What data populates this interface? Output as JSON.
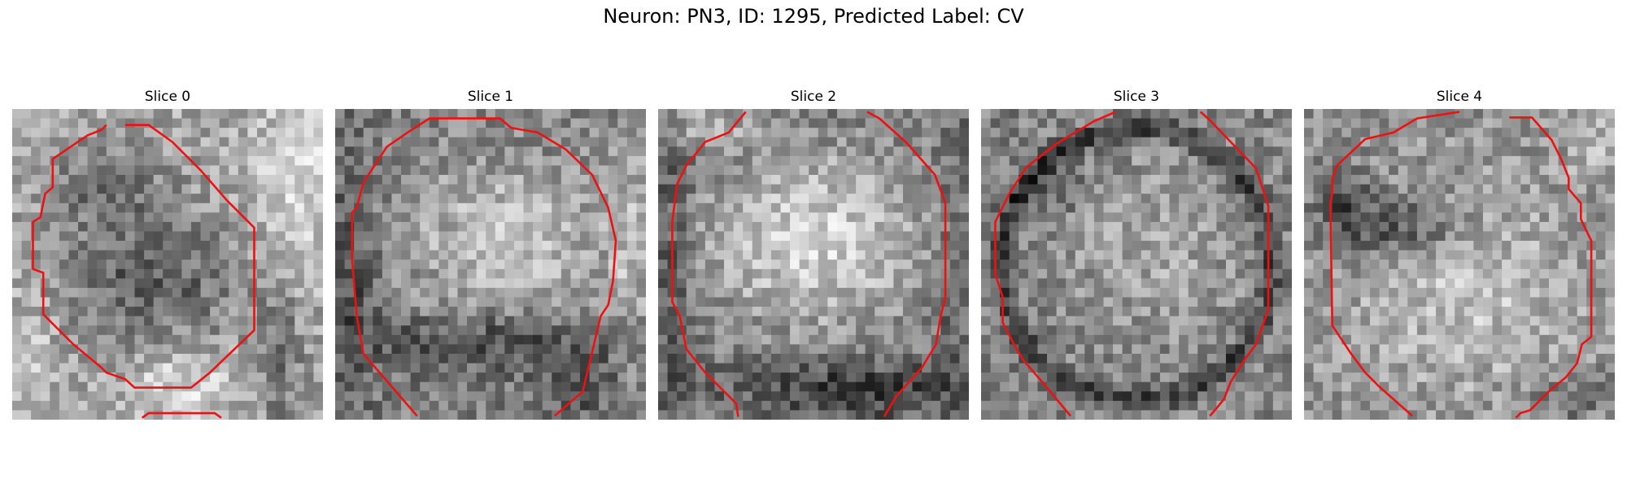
{
  "figure": {
    "title": "Neuron: PN3, ID: 1295, Predicted Label: CV"
  },
  "panels": [
    {
      "title": "Slice 0"
    },
    {
      "title": "Slice 1"
    },
    {
      "title": "Slice 2"
    },
    {
      "title": "Slice 3"
    },
    {
      "title": "Slice 4"
    }
  ],
  "colors": {
    "contour": "#ee1111",
    "background": "#ffffff"
  }
}
